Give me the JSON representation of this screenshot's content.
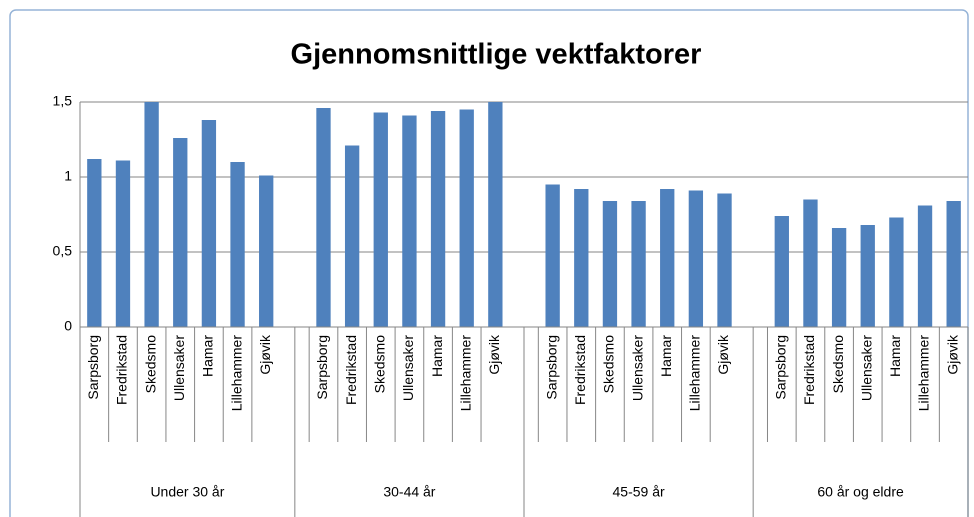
{
  "chart_data": {
    "type": "bar",
    "title": "Gjennomsnittlige vektfaktorer",
    "categories": [
      "Sarpsborg",
      "Fredrikstad",
      "Skedsmo",
      "Ullensaker",
      "Hamar",
      "Lillehammer",
      "Gjøvik",
      "Sarpsborg",
      "Fredrikstad",
      "Skedsmo",
      "Ullensaker",
      "Hamar",
      "Lillehammer",
      "Gjøvik",
      "Sarpsborg",
      "Fredrikstad",
      "Skedsmo",
      "Ullensaker",
      "Hamar",
      "Lillehammer",
      "Gjøvik",
      "Sarpsborg",
      "Fredrikstad",
      "Skedsmo",
      "Ullensaker",
      "Hamar",
      "Lillehammer",
      "Gjøvik"
    ],
    "groups": [
      "Under 30 år",
      "30-44 år",
      "45-59 år",
      "60 år og eldre"
    ],
    "values": [
      1.12,
      1.11,
      1.5,
      1.26,
      1.38,
      1.1,
      1.01,
      1.46,
      1.21,
      1.43,
      1.41,
      1.44,
      1.45,
      1.5,
      0.95,
      0.92,
      0.84,
      0.84,
      0.92,
      0.91,
      0.89,
      0.74,
      0.85,
      0.66,
      0.68,
      0.73,
      0.81,
      0.84
    ],
    "color": "#4f81bd",
    "ylim": [
      0,
      1.5
    ],
    "yticks": [
      0,
      {
        "value": 0.5,
        "label": "0,5"
      },
      1,
      {
        "value": 1.5,
        "label": "1,5"
      }
    ],
    "grid": true
  }
}
